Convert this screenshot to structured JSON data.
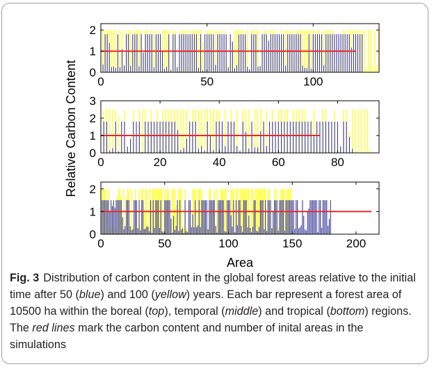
{
  "figure": {
    "label": "Fig. 3",
    "caption_parts": [
      {
        "text": "Distribution of carbon content in the global forest areas relative to the initial time after 50 (",
        "italic": false
      },
      {
        "text": "blue",
        "italic": true
      },
      {
        "text": ") and 100 (",
        "italic": false
      },
      {
        "text": "yellow",
        "italic": true
      },
      {
        "text": ") years. Each bar represent a forest area of 10500 ha within the boreal (",
        "italic": false
      },
      {
        "text": "top",
        "italic": true
      },
      {
        "text": "), temporal (",
        "italic": false
      },
      {
        "text": "middle",
        "italic": true
      },
      {
        "text": ") and tropical (",
        "italic": false
      },
      {
        "text": "bottom",
        "italic": true
      },
      {
        "text": ") regions. The ",
        "italic": false
      },
      {
        "text": "red lines",
        "italic": true
      },
      {
        "text": " mark the carbon content and number of inital areas in the simulations",
        "italic": false
      }
    ]
  },
  "colors": {
    "blue": "#3b3b9c",
    "yellow": "#ffff33",
    "red": "#e8262c",
    "axis": "#000000"
  },
  "chart_data": [
    {
      "type": "bar",
      "region": "boreal",
      "position": "top",
      "ylabel": "Relative Carbon Content",
      "xlabel": "",
      "xlim": [
        0,
        131
      ],
      "ylim": [
        0,
        2.3
      ],
      "xticks": [
        0,
        50,
        100
      ],
      "yticks": [
        0,
        1,
        2
      ],
      "series": [
        {
          "name": "blue",
          "n_areas": 123,
          "max_value": 1.8
        },
        {
          "name": "yellow",
          "n_areas": 131,
          "max_value": 2.0
        }
      ],
      "reference_line": {
        "value": 1.0,
        "x_end": 120
      }
    },
    {
      "type": "bar",
      "region": "temporal",
      "position": "middle",
      "ylabel": "",
      "xlabel": "",
      "xlim": [
        0,
        94
      ],
      "ylim": [
        0,
        3
      ],
      "xticks": [
        0,
        20,
        40,
        60,
        80
      ],
      "yticks": [
        0,
        1,
        2,
        3
      ],
      "series": [
        {
          "name": "blue",
          "n_areas": 85,
          "max_value": 1.8
        },
        {
          "name": "yellow",
          "n_areas": 91,
          "max_value": 2.5
        }
      ],
      "reference_line": {
        "value": 1.0,
        "x_end": 74
      }
    },
    {
      "type": "bar",
      "region": "tropical",
      "position": "bottom",
      "ylabel": "",
      "xlabel": "Area",
      "xlim": [
        0,
        218
      ],
      "ylim": [
        0,
        2.3
      ],
      "xticks": [
        0,
        50,
        100,
        150,
        200
      ],
      "yticks": [
        0,
        1,
        2
      ],
      "series": [
        {
          "name": "blue",
          "n_areas": 180,
          "max_value": 1.5
        },
        {
          "name": "yellow",
          "n_areas": 150,
          "max_value": 2.0
        }
      ],
      "reference_line": {
        "value": 1.0,
        "x_end": 212
      }
    }
  ],
  "shared_ylabel": "Relative Carbon Content",
  "shared_xlabel": "Area"
}
